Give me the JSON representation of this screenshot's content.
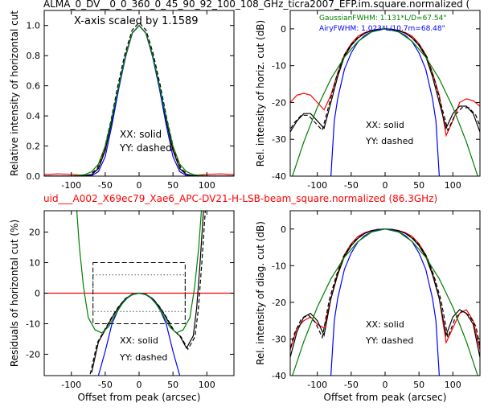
{
  "figure": {
    "title_top": "ALMA_0_DV__0_0_360_0_45_90_92_100_108_GHz_ticra2007_EFP.im.square.normalized (",
    "title_mid": "uid___A002_X69ec79_Xae6_APC-DV21-H-LSB-beam_square.normalized (86.3GHz)",
    "title_mid_color": "#ff0000"
  },
  "colors": {
    "measured": "#ff0000",
    "model": "#000000",
    "gaussian": "#008000",
    "airy": "#0000ff"
  },
  "chart_data": [
    {
      "type": "line",
      "panel": "top-left",
      "ylabel": "Relative intensity of horizontal cut",
      "xlim": [
        -140,
        140
      ],
      "ylim": [
        0,
        1.1
      ],
      "xticks": [
        -100,
        -50,
        0,
        50,
        100
      ],
      "yticks": [
        0.0,
        0.2,
        0.4,
        0.6,
        0.8,
        1.0
      ],
      "annotations": [
        "X-axis scaled by 1.1589",
        "XX: solid",
        "YY: dashed"
      ],
      "series": [
        {
          "color": "#ff0000",
          "x": [
            -140,
            -120,
            -100,
            -80,
            -70,
            -60,
            -50,
            -40,
            -30,
            -20,
            -10,
            0,
            10,
            20,
            30,
            40,
            50,
            60,
            70,
            80,
            100,
            120,
            140
          ],
          "y": [
            0.01,
            0.015,
            0.012,
            0.005,
            0.01,
            0.05,
            0.18,
            0.38,
            0.6,
            0.8,
            0.95,
            1.0,
            0.95,
            0.8,
            0.6,
            0.38,
            0.18,
            0.05,
            0.01,
            0.005,
            0.012,
            0.015,
            0.01
          ]
        },
        {
          "color": "#000000",
          "x": [
            -140,
            -100,
            -80,
            -70,
            -60,
            -50,
            -40,
            -30,
            -20,
            -10,
            0,
            10,
            20,
            30,
            40,
            50,
            60,
            70,
            80,
            100,
            140
          ],
          "y": [
            0.0,
            0.0,
            0.003,
            0.01,
            0.05,
            0.17,
            0.37,
            0.6,
            0.8,
            0.95,
            1.0,
            0.95,
            0.8,
            0.6,
            0.37,
            0.17,
            0.05,
            0.01,
            0.003,
            0.0,
            0.0
          ]
        },
        {
          "color": "#0000ff",
          "x": [
            -140,
            -80,
            -70,
            -60,
            -50,
            -40,
            -30,
            -20,
            -10,
            0,
            10,
            20,
            30,
            40,
            50,
            60,
            70,
            80,
            140
          ],
          "y": [
            0,
            0,
            0.003,
            0.03,
            0.13,
            0.34,
            0.58,
            0.79,
            0.95,
            1.0,
            0.95,
            0.79,
            0.58,
            0.34,
            0.13,
            0.03,
            0.003,
            0,
            0
          ]
        },
        {
          "color": "#008000",
          "x": [
            -140,
            -100,
            -80,
            -70,
            -60,
            -50,
            -40,
            -30,
            -20,
            -10,
            0,
            10,
            20,
            30,
            40,
            50,
            60,
            70,
            80,
            100,
            140
          ],
          "y": [
            0,
            0.001,
            0.01,
            0.03,
            0.08,
            0.2,
            0.39,
            0.6,
            0.8,
            0.95,
            1.0,
            0.95,
            0.8,
            0.6,
            0.39,
            0.2,
            0.08,
            0.03,
            0.01,
            0.001,
            0
          ]
        }
      ]
    },
    {
      "type": "line",
      "panel": "top-right",
      "ylabel": "Rel. intensity of horiz. cut (dB)",
      "xlim": [
        -140,
        140
      ],
      "ylim": [
        -40,
        5
      ],
      "xticks": [
        -100,
        -50,
        0,
        50,
        100
      ],
      "yticks": [
        0,
        -10,
        -20,
        -30,
        -40
      ],
      "annotations": [
        "GaussianFWHM: 1.131*L/D=67.54\"",
        "AiryFWHM: 1.023*L/10.7m=68.48\"",
        "XX: solid",
        "YY: dashed"
      ],
      "series": [
        {
          "color": "#ff0000",
          "x": [
            -140,
            -130,
            -120,
            -110,
            -100,
            -90,
            -80,
            -70,
            -60,
            -50,
            -40,
            -30,
            -20,
            -10,
            0,
            10,
            20,
            30,
            40,
            50,
            60,
            70,
            80,
            90,
            100,
            110,
            120,
            130,
            140
          ],
          "y": [
            -20,
            -18,
            -17.5,
            -18,
            -20,
            -22,
            -18,
            -12,
            -7,
            -4,
            -2,
            -1,
            -0.4,
            -0.1,
            0,
            -0.1,
            -0.4,
            -1,
            -2,
            -4,
            -7,
            -12,
            -18,
            -29,
            -25,
            -20,
            -19,
            -19.5,
            -21
          ]
        },
        {
          "color": "#000000",
          "x": [
            -140,
            -130,
            -120,
            -110,
            -100,
            -90,
            -80,
            -70,
            -60,
            -50,
            -40,
            -30,
            -20,
            -10,
            0,
            10,
            20,
            30,
            40,
            50,
            60,
            70,
            80,
            90,
            100,
            110,
            120,
            130,
            140
          ],
          "y": [
            -28,
            -25,
            -23,
            -23,
            -25,
            -27,
            -20,
            -13,
            -7.5,
            -4.5,
            -2.5,
            -1.2,
            -0.5,
            -0.1,
            0,
            -0.1,
            -0.5,
            -1.2,
            -2.5,
            -4.5,
            -7.5,
            -13,
            -20,
            -27,
            -23,
            -21,
            -21,
            -23,
            -28
          ]
        },
        {
          "color": "#0000ff",
          "x": [
            -80,
            -75,
            -70,
            -60,
            -50,
            -40,
            -30,
            -20,
            -10,
            0,
            10,
            20,
            30,
            40,
            50,
            60,
            70,
            75,
            80
          ],
          "y": [
            -40,
            -25,
            -19,
            -11,
            -6.5,
            -3.5,
            -1.8,
            -0.8,
            -0.2,
            0,
            -0.2,
            -0.8,
            -1.8,
            -3.5,
            -6.5,
            -11,
            -19,
            -25,
            -40
          ]
        },
        {
          "color": "#008000",
          "x": [
            -140,
            -120,
            -100,
            -80,
            -60,
            -40,
            -20,
            0,
            20,
            40,
            60,
            80,
            100,
            120,
            140
          ],
          "y": [
            -41.8,
            -30.7,
            -21.3,
            -13.6,
            -7.7,
            -3.4,
            -0.85,
            0,
            -0.85,
            -3.4,
            -7.7,
            -13.6,
            -21.3,
            -30.7,
            -41.8
          ]
        }
      ]
    },
    {
      "type": "line",
      "panel": "bottom-left",
      "ylabel": "Residuals of horizontal cut (%)",
      "xlabel": "Offset from peak (arcsec)",
      "xlim": [
        -140,
        140
      ],
      "ylim": [
        -27,
        27
      ],
      "xticks": [
        -100,
        -50,
        0,
        50,
        100
      ],
      "yticks": [
        -20,
        -10,
        0,
        10,
        20
      ],
      "annotations": [
        "XX: solid",
        "YY: dashed"
      ],
      "series": [
        {
          "color": "#ff0000",
          "x": [
            -140,
            140
          ],
          "y": [
            0,
            0
          ]
        },
        {
          "color": "#000000",
          "x": [
            -70,
            -60,
            -50,
            -40,
            -30,
            -20,
            -10,
            0,
            10,
            20,
            30,
            40,
            50,
            60,
            70,
            80,
            85,
            90,
            95
          ],
          "y": [
            -26,
            -16,
            -12,
            -8,
            -4.5,
            -1.8,
            -0.4,
            0,
            -0.4,
            -1.8,
            -4.5,
            -8,
            -12,
            -14,
            -18,
            -14,
            -5,
            10,
            27
          ]
        },
        {
          "color": "#0000ff",
          "x": [
            -60,
            -50,
            -40,
            -30,
            -20,
            -10,
            0,
            10,
            20,
            30,
            40,
            50,
            60
          ],
          "y": [
            -27,
            -19,
            -10,
            -5,
            -2,
            -0.5,
            0,
            -0.5,
            -2,
            -5,
            -10,
            -19,
            -27
          ]
        },
        {
          "color": "#008000",
          "x": [
            -92,
            -88,
            -82,
            -75,
            -65,
            -55,
            -45,
            -35,
            -25,
            -15,
            -5,
            0,
            5,
            15,
            25,
            35,
            45,
            55,
            65,
            75,
            82,
            88,
            92
          ],
          "y": [
            27,
            15,
            2,
            -8,
            -12,
            -13,
            -11,
            -7,
            -3.5,
            -1,
            -0.1,
            0,
            -0.1,
            -1,
            -3.5,
            -7,
            -11,
            -13,
            -12,
            -8,
            2,
            15,
            27
          ]
        }
      ]
    },
    {
      "type": "line",
      "panel": "bottom-right",
      "ylabel": "Rel. intensity of diag. cut (dB)",
      "xlabel": "Offset from peak (arcsec)",
      "xlim": [
        -140,
        140
      ],
      "ylim": [
        -40,
        5
      ],
      "xticks": [
        -100,
        -50,
        0,
        50,
        100
      ],
      "yticks": [
        0,
        -10,
        -20,
        -30,
        -40
      ],
      "annotations": [
        "XX: solid",
        "YY: dashed"
      ],
      "series": [
        {
          "color": "#ff0000",
          "x": [
            -140,
            -130,
            -120,
            -110,
            -100,
            -90,
            -80,
            -70,
            -60,
            -50,
            -40,
            -30,
            -20,
            -10,
            0,
            10,
            20,
            30,
            40,
            50,
            60,
            70,
            80,
            90,
            100,
            110,
            120,
            130,
            140
          ],
          "y": [
            -33,
            -27,
            -25,
            -24,
            -26,
            -27,
            -19,
            -12,
            -7,
            -4,
            -2,
            -1,
            -0.4,
            -0.1,
            0,
            -0.1,
            -0.4,
            -1,
            -2,
            -4,
            -7,
            -12,
            -19,
            -31,
            -27,
            -23,
            -22,
            -25,
            -33
          ]
        },
        {
          "color": "#000000",
          "x": [
            -140,
            -130,
            -120,
            -110,
            -100,
            -90,
            -80,
            -70,
            -60,
            -50,
            -40,
            -30,
            -20,
            -10,
            0,
            10,
            20,
            30,
            40,
            50,
            60,
            70,
            80,
            90,
            100,
            110,
            120,
            130,
            140
          ],
          "y": [
            -35,
            -28,
            -24,
            -23,
            -25,
            -29,
            -19,
            -12.5,
            -7.5,
            -4.5,
            -2.5,
            -1.2,
            -0.5,
            -0.1,
            0,
            -0.1,
            -0.5,
            -1.2,
            -2.5,
            -4.5,
            -7.5,
            -12.5,
            -19,
            -29,
            -24,
            -22,
            -23,
            -26,
            -35
          ]
        },
        {
          "color": "#0000ff",
          "x": [
            -80,
            -75,
            -70,
            -60,
            -50,
            -40,
            -30,
            -20,
            -10,
            0,
            10,
            20,
            30,
            40,
            50,
            60,
            70,
            75,
            80
          ],
          "y": [
            -40,
            -25,
            -19,
            -11,
            -6.5,
            -3.5,
            -1.8,
            -0.8,
            -0.2,
            0,
            -0.2,
            -0.8,
            -1.8,
            -3.5,
            -6.5,
            -11,
            -19,
            -25,
            -40
          ]
        },
        {
          "color": "#008000",
          "x": [
            -140,
            -120,
            -100,
            -80,
            -60,
            -40,
            -20,
            0,
            20,
            40,
            60,
            80,
            100,
            120,
            140
          ],
          "y": [
            -41.8,
            -30.7,
            -21.3,
            -13.6,
            -7.7,
            -3.4,
            -0.85,
            0,
            -0.85,
            -3.4,
            -7.7,
            -13.6,
            -21.3,
            -30.7,
            -41.8
          ]
        }
      ]
    }
  ]
}
